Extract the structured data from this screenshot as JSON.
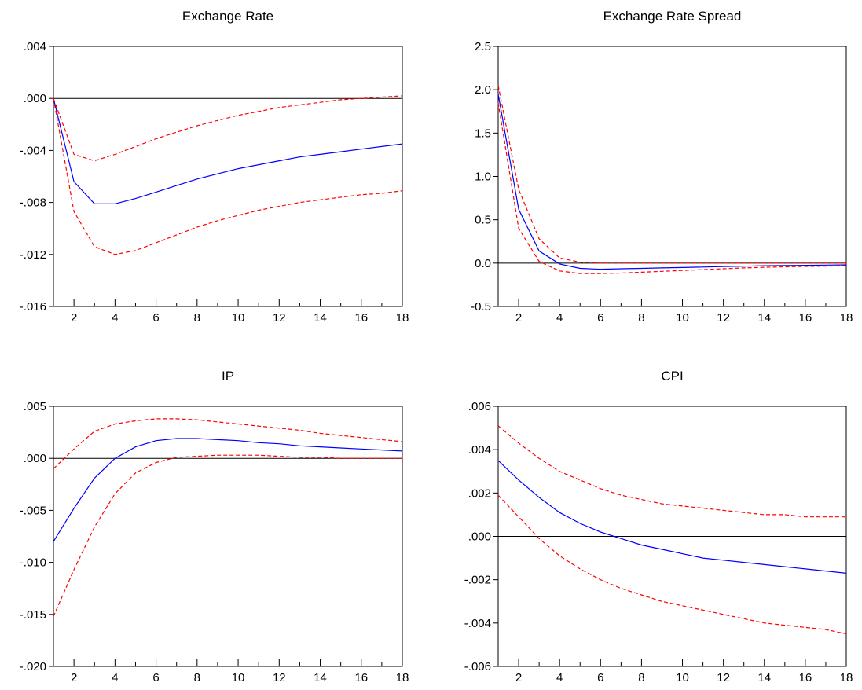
{
  "colors": {
    "response": "#0000ff",
    "bands": "#ff0000",
    "zero_line": "#000000",
    "axes": "#000000",
    "background": "#ffffff"
  },
  "chart_data": [
    {
      "type": "line",
      "title": "Exchange Rate",
      "xlabel": "",
      "ylabel": "",
      "x": [
        1,
        2,
        3,
        4,
        5,
        6,
        7,
        8,
        9,
        10,
        11,
        12,
        13,
        14,
        15,
        16,
        17,
        18
      ],
      "xticks": [
        "2",
        "4",
        "6",
        "8",
        "10",
        "12",
        "14",
        "16",
        "18"
      ],
      "xlim": [
        1,
        18
      ],
      "ylim": [
        -0.016,
        0.004
      ],
      "yticks": [
        ".004",
        ".000",
        "-.004",
        "-.008",
        "-.012",
        "-.016"
      ],
      "zero_line": 0,
      "grid": false,
      "series": [
        {
          "role": "response",
          "style": "solid",
          "values": [
            0.0,
            -0.0064,
            -0.0081,
            -0.0081,
            -0.0077,
            -0.0072,
            -0.0067,
            -0.0062,
            -0.0058,
            -0.0054,
            -0.0051,
            -0.0048,
            -0.0045,
            -0.0043,
            -0.0041,
            -0.0039,
            -0.0037,
            -0.0035
          ]
        },
        {
          "role": "upper",
          "style": "dashed",
          "values": [
            0.0,
            -0.0043,
            -0.0048,
            -0.0043,
            -0.0037,
            -0.0031,
            -0.0026,
            -0.0021,
            -0.0017,
            -0.0013,
            -0.001,
            -0.0007,
            -0.0005,
            -0.0003,
            -0.0001,
            0.0,
            0.0001,
            0.0002
          ]
        },
        {
          "role": "lower",
          "style": "dashed",
          "values": [
            0.0,
            -0.0087,
            -0.0114,
            -0.012,
            -0.0117,
            -0.0111,
            -0.0105,
            -0.0099,
            -0.0094,
            -0.009,
            -0.0086,
            -0.0083,
            -0.008,
            -0.0078,
            -0.0076,
            -0.0074,
            -0.0073,
            -0.0071
          ]
        }
      ]
    },
    {
      "type": "line",
      "title": "Exchange Rate Spread",
      "xlabel": "",
      "ylabel": "",
      "x": [
        1,
        2,
        3,
        4,
        5,
        6,
        7,
        8,
        9,
        10,
        11,
        12,
        13,
        14,
        15,
        16,
        17,
        18
      ],
      "xticks": [
        "2",
        "4",
        "6",
        "8",
        "10",
        "12",
        "14",
        "16",
        "18"
      ],
      "xlim": [
        1,
        18
      ],
      "ylim": [
        -0.5,
        2.5
      ],
      "yticks": [
        "2.5",
        "2.0",
        "1.5",
        "1.0",
        "0.5",
        "0.0",
        "-0.5"
      ],
      "zero_line": 0,
      "grid": false,
      "series": [
        {
          "role": "response",
          "style": "solid",
          "values": [
            1.95,
            0.62,
            0.14,
            -0.01,
            -0.06,
            -0.07,
            -0.065,
            -0.06,
            -0.055,
            -0.05,
            -0.045,
            -0.04,
            -0.035,
            -0.03,
            -0.028,
            -0.025,
            -0.022,
            -0.02
          ]
        },
        {
          "role": "upper",
          "style": "dashed",
          "values": [
            2.05,
            0.85,
            0.28,
            0.06,
            0.01,
            0.0,
            0.0,
            0.0,
            0.0,
            0.0,
            0.0,
            0.0,
            0.0,
            0.0,
            0.0,
            0.0,
            0.0,
            0.0
          ]
        },
        {
          "role": "lower",
          "style": "dashed",
          "values": [
            1.85,
            0.4,
            0.02,
            -0.09,
            -0.12,
            -0.12,
            -0.115,
            -0.105,
            -0.095,
            -0.085,
            -0.075,
            -0.065,
            -0.055,
            -0.048,
            -0.042,
            -0.038,
            -0.034,
            -0.03
          ]
        }
      ]
    },
    {
      "type": "line",
      "title": "IP",
      "xlabel": "",
      "ylabel": "",
      "x": [
        1,
        2,
        3,
        4,
        5,
        6,
        7,
        8,
        9,
        10,
        11,
        12,
        13,
        14,
        15,
        16,
        17,
        18
      ],
      "xticks": [
        "2",
        "4",
        "6",
        "8",
        "10",
        "12",
        "14",
        "16",
        "18"
      ],
      "xlim": [
        1,
        18
      ],
      "ylim": [
        -0.02,
        0.005
      ],
      "yticks": [
        ".005",
        ".000",
        "-.005",
        "-.010",
        "-.015",
        "-.020"
      ],
      "zero_line": 0,
      "grid": false,
      "series": [
        {
          "role": "response",
          "style": "solid",
          "values": [
            -0.008,
            -0.0048,
            -0.0019,
            0.0,
            0.0011,
            0.0017,
            0.0019,
            0.0019,
            0.0018,
            0.0017,
            0.0015,
            0.0014,
            0.0012,
            0.0011,
            0.001,
            0.0009,
            0.0008,
            0.0007
          ]
        },
        {
          "role": "upper",
          "style": "dashed",
          "values": [
            -0.001,
            0.0009,
            0.0026,
            0.0033,
            0.0036,
            0.0038,
            0.0038,
            0.0037,
            0.0035,
            0.0033,
            0.0031,
            0.0029,
            0.0027,
            0.0024,
            0.0022,
            0.002,
            0.0018,
            0.0016
          ]
        },
        {
          "role": "lower",
          "style": "dashed",
          "values": [
            -0.0152,
            -0.0107,
            -0.0066,
            -0.0034,
            -0.0014,
            -0.0004,
            0.0001,
            0.0002,
            0.0003,
            0.0003,
            0.0003,
            0.0002,
            0.0001,
            0.0001,
            0.0,
            0.0,
            0.0,
            0.0
          ]
        }
      ]
    },
    {
      "type": "line",
      "title": "CPI",
      "xlabel": "",
      "ylabel": "",
      "x": [
        1,
        2,
        3,
        4,
        5,
        6,
        7,
        8,
        9,
        10,
        11,
        12,
        13,
        14,
        15,
        16,
        17,
        18
      ],
      "xticks": [
        "2",
        "4",
        "6",
        "8",
        "10",
        "12",
        "14",
        "16",
        "18"
      ],
      "xlim": [
        1,
        18
      ],
      "ylim": [
        -0.006,
        0.006
      ],
      "yticks": [
        ".006",
        ".004",
        ".002",
        ".000",
        "-.002",
        "-.004",
        "-.006"
      ],
      "zero_line": 0,
      "grid": false,
      "series": [
        {
          "role": "response",
          "style": "solid",
          "values": [
            0.0035,
            0.0026,
            0.0018,
            0.0011,
            0.0006,
            0.0002,
            -0.0001,
            -0.0004,
            -0.0006,
            -0.0008,
            -0.001,
            -0.0011,
            -0.0012,
            -0.0013,
            -0.0014,
            -0.0015,
            -0.0016,
            -0.0017
          ]
        },
        {
          "role": "upper",
          "style": "dashed",
          "values": [
            0.0051,
            0.0043,
            0.0036,
            0.003,
            0.0026,
            0.0022,
            0.0019,
            0.0017,
            0.0015,
            0.0014,
            0.0013,
            0.0012,
            0.0011,
            0.001,
            0.001,
            0.0009,
            0.0009,
            0.0009
          ]
        },
        {
          "role": "lower",
          "style": "dashed",
          "values": [
            0.0019,
            0.0009,
            -0.0001,
            -0.0009,
            -0.0015,
            -0.002,
            -0.0024,
            -0.0027,
            -0.003,
            -0.0032,
            -0.0034,
            -0.0036,
            -0.0038,
            -0.004,
            -0.0041,
            -0.0042,
            -0.0043,
            -0.0045
          ]
        }
      ]
    }
  ]
}
